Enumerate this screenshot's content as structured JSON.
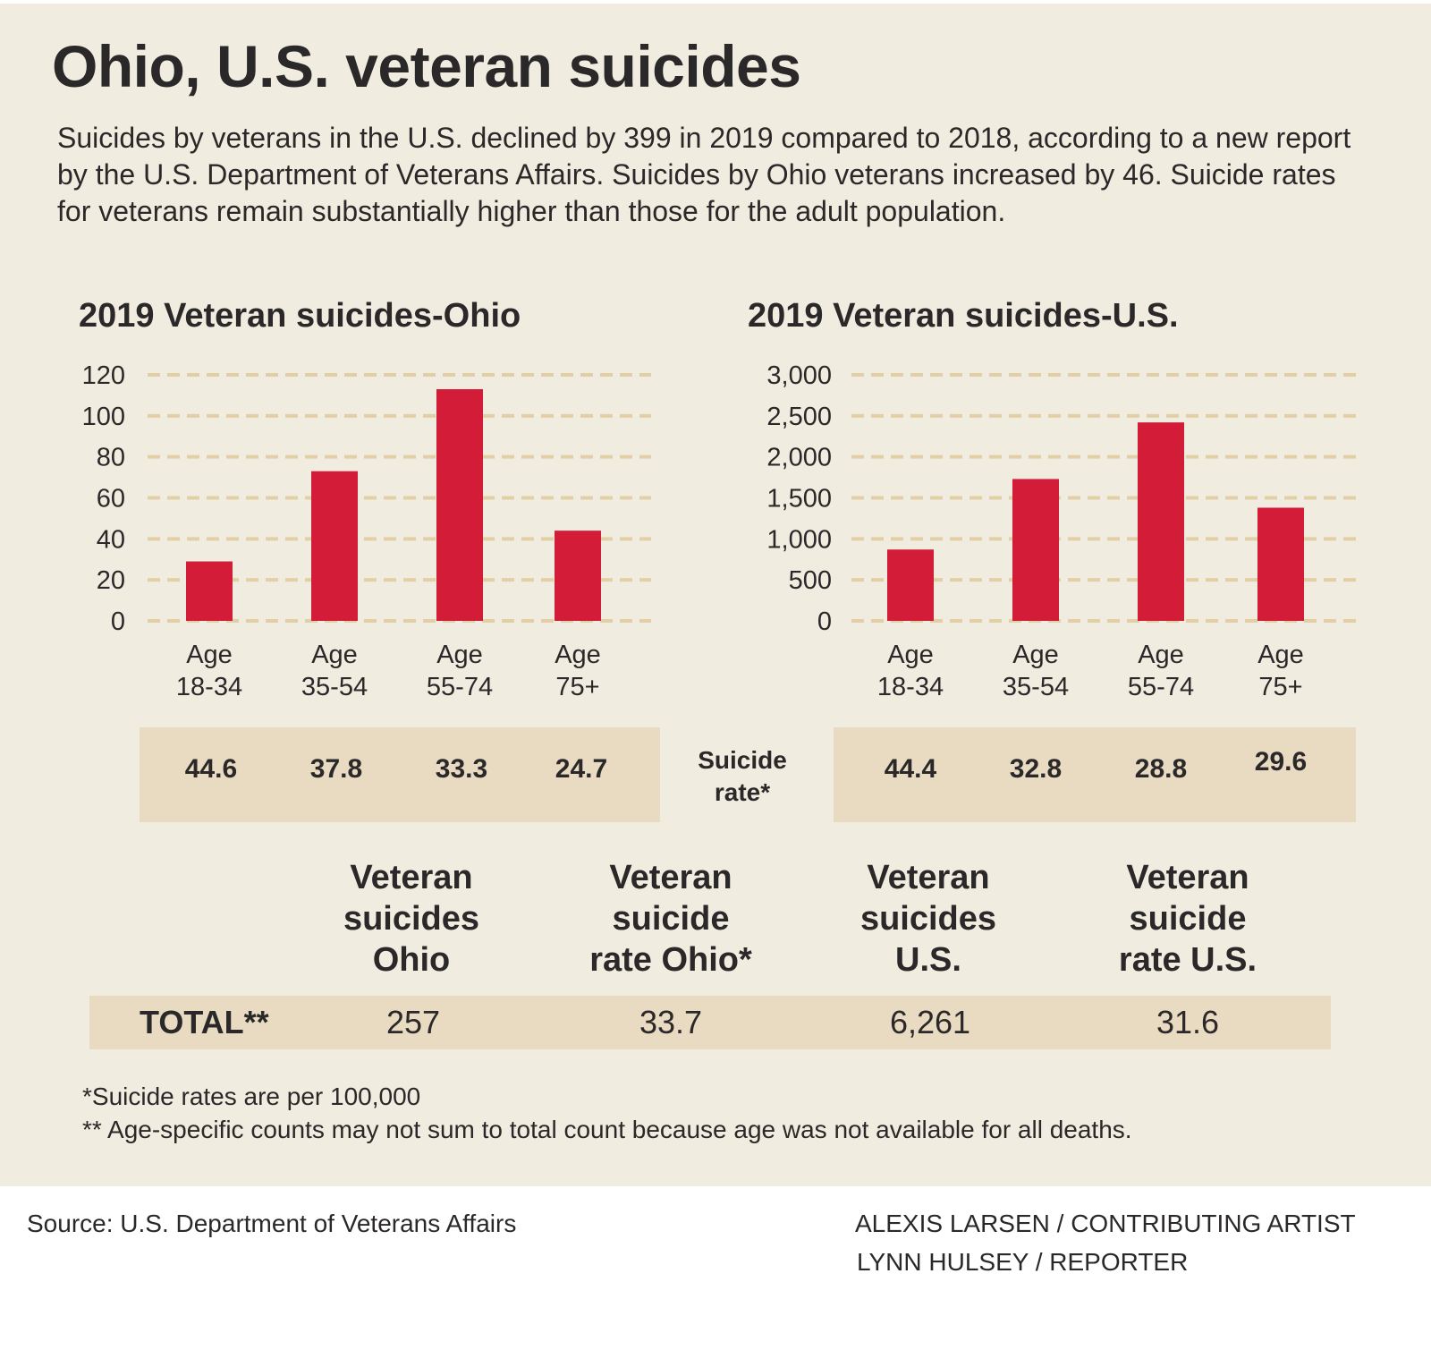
{
  "header": {
    "title": "Ohio, U.S. veteran suicides",
    "intro": "Suicides by veterans in the U.S. declined by 399 in 2019 compared to 2018, according to a new report by the U.S. Department of Veterans Affairs. Suicides by Ohio veterans increased by 46. Suicide rates for veterans remain substantially higher than those for the adult population."
  },
  "colors": {
    "bar": "#d31c37",
    "grid": "#e2cfa6",
    "panel_background": "#f1ece0",
    "table_fill": "#e8dbc1",
    "text": "#2b2829"
  },
  "chart_data": [
    {
      "type": "bar",
      "title": "2019 Veteran suicides-Ohio",
      "categories": [
        "Age 18-34",
        "Age 35-54",
        "Age 55-74",
        "Age 75+"
      ],
      "category_lines": [
        [
          "Age",
          "18-34"
        ],
        [
          "Age",
          "35-54"
        ],
        [
          "Age",
          "55-74"
        ],
        [
          "Age",
          "75+"
        ]
      ],
      "values": [
        29,
        73,
        113,
        44
      ],
      "yticks": [
        0,
        20,
        40,
        60,
        80,
        100,
        120
      ],
      "ytick_labels": [
        "0",
        "20",
        "40",
        "60",
        "80",
        "100",
        "120"
      ],
      "ylim": [
        0,
        120
      ],
      "xlabel": "",
      "ylabel": "",
      "grid": true,
      "grid_style": "dashed"
    },
    {
      "type": "bar",
      "title": "2019 Veteran suicides-U.S.",
      "categories": [
        "Age 18-34",
        "Age 35-54",
        "Age 55-74",
        "Age 75+"
      ],
      "category_lines": [
        [
          "Age",
          "18-34"
        ],
        [
          "Age",
          "35-54"
        ],
        [
          "Age",
          "55-74"
        ],
        [
          "Age",
          "75+"
        ]
      ],
      "values": [
        870,
        1730,
        2420,
        1380
      ],
      "yticks": [
        0,
        500,
        1000,
        1500,
        2000,
        2500,
        3000
      ],
      "ytick_labels": [
        "0",
        "500",
        "1,000",
        "1,500",
        "2,000",
        "2,500",
        "3,000"
      ],
      "ylim": [
        0,
        3000
      ],
      "xlabel": "",
      "ylabel": "",
      "grid": true,
      "grid_style": "dashed"
    }
  ],
  "rates": {
    "label_line1": "Suicide",
    "label_line2": "rate*",
    "ohio": [
      "44.6",
      "37.8",
      "33.3",
      "24.7"
    ],
    "us": [
      "44.4",
      "32.8",
      "28.8",
      "29.6"
    ]
  },
  "totals": {
    "row_label": "TOTAL**",
    "columns": [
      {
        "heading": [
          "Veteran",
          "suicides",
          "Ohio"
        ],
        "value": "257"
      },
      {
        "heading": [
          "Veteran",
          "suicide",
          "rate Ohio*"
        ],
        "value": "33.7"
      },
      {
        "heading": [
          "Veteran",
          "suicides",
          "U.S."
        ],
        "value": "6,261"
      },
      {
        "heading": [
          "Veteran",
          "suicide",
          "rate U.S."
        ],
        "value": "31.6"
      }
    ]
  },
  "footnotes": {
    "rate_note": "*Suicide rates are per 100,000",
    "count_note": "** Age-specific counts may not sum to total count because age was not available for all deaths."
  },
  "credits": {
    "source": "Source: U.S. Department of Veterans Affairs",
    "artist": "ALEXIS LARSEN / CONTRIBUTING ARTIST",
    "reporter": "LYNN HULSEY / REPORTER"
  }
}
